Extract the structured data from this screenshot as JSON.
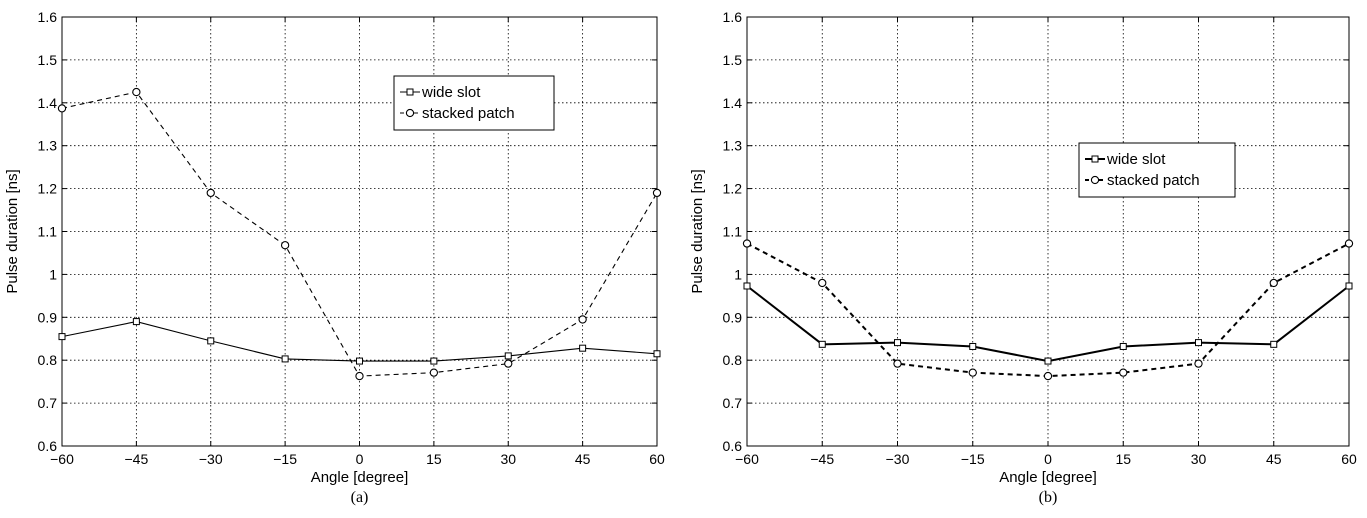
{
  "chart_data": [
    {
      "type": "line",
      "caption": "(a)",
      "xlabel": "Angle [degree]",
      "ylabel": "Pulse duration [ns]",
      "xlim": [
        -60,
        60
      ],
      "ylim": [
        0.6,
        1.6
      ],
      "x": [
        -60,
        -45,
        -30,
        -15,
        0,
        15,
        30,
        45,
        60
      ],
      "xticks": [
        "−60",
        "−45",
        "−30",
        "−15",
        "0",
        "15",
        "30",
        "45",
        "60"
      ],
      "yticks": [
        "0.6",
        "0.7",
        "0.8",
        "0.9",
        "1",
        "1.1",
        "1.2",
        "1.3",
        "1.4",
        "1.5",
        "1.6"
      ],
      "grid": true,
      "legend_position": "top-right",
      "series": [
        {
          "name": "wide slot",
          "marker": "square",
          "line": "solid",
          "values": [
            0.855,
            0.89,
            0.845,
            0.803,
            0.798,
            0.798,
            0.81,
            0.828,
            0.815
          ]
        },
        {
          "name": "stacked patch",
          "marker": "circle",
          "line": "dashed",
          "values": [
            1.387,
            1.425,
            1.19,
            1.068,
            0.763,
            0.771,
            0.792,
            0.895,
            1.19
          ]
        }
      ]
    },
    {
      "type": "line",
      "caption": "(b)",
      "xlabel": "Angle [degree]",
      "ylabel": "Pulse duration [ns]",
      "xlim": [
        -60,
        60
      ],
      "ylim": [
        0.6,
        1.6
      ],
      "x": [
        -60,
        -45,
        -30,
        -15,
        0,
        15,
        30,
        45,
        60
      ],
      "xticks": [
        "−60",
        "−45",
        "−30",
        "−15",
        "0",
        "15",
        "30",
        "45",
        "60"
      ],
      "yticks": [
        "0.6",
        "0.7",
        "0.8",
        "0.9",
        "1",
        "1.1",
        "1.2",
        "1.3",
        "1.4",
        "1.5",
        "1.6"
      ],
      "grid": true,
      "legend_position": "top-right",
      "series": [
        {
          "name": "wide slot",
          "marker": "square",
          "line": "solid",
          "values": [
            0.973,
            0.837,
            0.841,
            0.832,
            0.798,
            0.832,
            0.841,
            0.837,
            0.973
          ]
        },
        {
          "name": "stacked patch",
          "marker": "circle",
          "line": "dashed",
          "values": [
            1.072,
            0.98,
            0.792,
            0.771,
            0.763,
            0.771,
            0.792,
            0.98,
            1.072
          ]
        }
      ]
    }
  ]
}
